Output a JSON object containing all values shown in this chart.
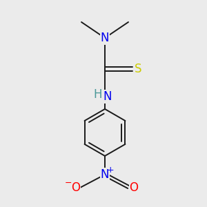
{
  "bg_color": "#ebebeb",
  "atom_colors": {
    "N": "#0000ee",
    "S": "#cccc00",
    "O": "#ff0000",
    "H": "#4a9898"
  },
  "bond_color": "#1a1a1a",
  "font_size": 12,
  "sup_font_size": 9
}
